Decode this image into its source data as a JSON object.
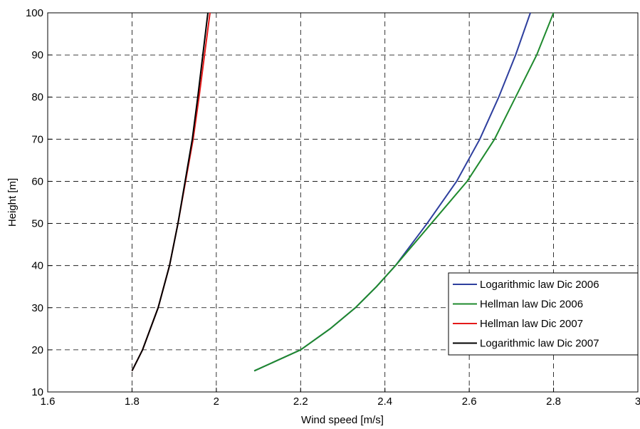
{
  "chart_data": {
    "type": "line",
    "x_label": "Wind speed [m/s]",
    "y_label": "Height [m]",
    "xlim": [
      1.6,
      3
    ],
    "xticks": [
      1.6,
      1.8,
      2,
      2.2,
      2.4,
      2.6,
      2.8,
      3
    ],
    "ylim": [
      10,
      100
    ],
    "yticks": [
      10,
      20,
      30,
      40,
      50,
      60,
      70,
      80,
      90,
      100
    ],
    "grid": true,
    "legend": "lower right",
    "series": [
      {
        "name": "Logarithmic law Dic 2006",
        "color": "#2e3f9e",
        "x": [
          2.09,
          2.2,
          2.27,
          2.33,
          2.38,
          2.425,
          2.5,
          2.57,
          2.625,
          2.67,
          2.71,
          2.745
        ],
        "values": [
          15,
          20,
          25,
          30,
          35,
          40,
          50,
          60,
          70,
          80,
          90,
          100
        ]
      },
      {
        "name": "Hellman law Dic 2006",
        "color": "#1f8a2e",
        "x": [
          2.09,
          2.2,
          2.27,
          2.33,
          2.38,
          2.425,
          2.51,
          2.595,
          2.66,
          2.71,
          2.76,
          2.8
        ],
        "values": [
          15,
          20,
          25,
          30,
          35,
          40,
          50,
          60,
          70,
          80,
          90,
          100
        ]
      },
      {
        "name": "Hellman law Dic 2007",
        "color": "#e41a1a",
        "x": [
          1.8,
          1.825,
          1.862,
          1.889,
          1.909,
          1.927,
          1.945,
          1.959,
          1.972,
          1.985
        ],
        "values": [
          15,
          20,
          30,
          40,
          50,
          60,
          70,
          80,
          90,
          100
        ]
      },
      {
        "name": "Logarithmic law Dic 2007",
        "color": "#000000",
        "x": [
          1.8,
          1.825,
          1.862,
          1.889,
          1.909,
          1.926,
          1.943,
          1.956,
          1.968,
          1.98
        ],
        "values": [
          15,
          20,
          30,
          40,
          50,
          60,
          70,
          80,
          90,
          100
        ]
      }
    ]
  }
}
